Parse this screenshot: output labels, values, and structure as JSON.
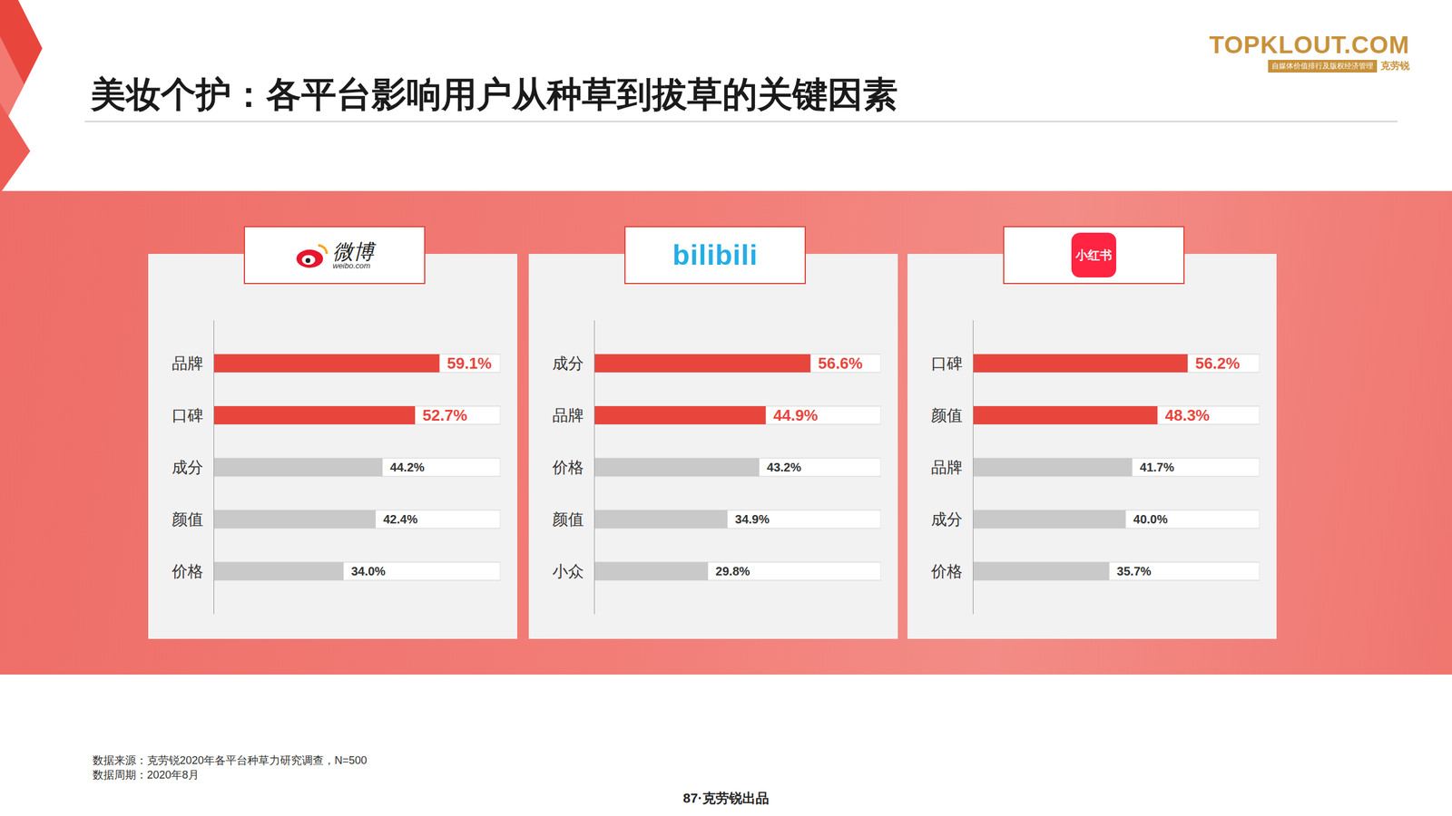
{
  "title": "美妆个护：各平台影响用户从种草到拔草的关键因素",
  "logo": {
    "name": "TOPKLOUT.COM",
    "tagline": "自媒体价值排行及版权经济管理",
    "brand": "克劳锐"
  },
  "source": "数据来源：克劳锐2020年各平台种草力研究调查，N=500",
  "period": "数据周期：2020年8月",
  "page": "87·克劳锐出品",
  "chart_data": [
    {
      "type": "bar",
      "title": "微博",
      "subtitle": "weibo.com",
      "orientation": "horizontal",
      "categories": [
        "品牌",
        "口碑",
        "成分",
        "颜值",
        "价格"
      ],
      "values": [
        59.1,
        52.7,
        44.2,
        42.4,
        34.0
      ],
      "value_labels": [
        "59.1%",
        "52.7%",
        "44.2%",
        "42.4%",
        "34.0%"
      ],
      "colors": [
        "#e8463d",
        "#e8463d",
        "#c9c9c9",
        "#c9c9c9",
        "#c9c9c9"
      ],
      "xlim": [
        0,
        75
      ],
      "tick_labels": "y",
      "data_labels": true,
      "grid": false
    },
    {
      "type": "bar",
      "title": "bilibili",
      "orientation": "horizontal",
      "categories": [
        "成分",
        "品牌",
        "价格",
        "颜值",
        "小众"
      ],
      "values": [
        56.6,
        44.9,
        43.2,
        34.9,
        29.8
      ],
      "value_labels": [
        "56.6%",
        "44.9%",
        "43.2%",
        "34.9%",
        "29.8%"
      ],
      "colors": [
        "#e8463d",
        "#e8463d",
        "#c9c9c9",
        "#c9c9c9",
        "#c9c9c9"
      ],
      "xlim": [
        0,
        75
      ],
      "tick_labels": "y",
      "data_labels": true,
      "grid": false
    },
    {
      "type": "bar",
      "title": "小红书",
      "orientation": "horizontal",
      "categories": [
        "口碑",
        "颜值",
        "品牌",
        "成分",
        "价格"
      ],
      "values": [
        56.2,
        48.3,
        41.7,
        40.0,
        35.7
      ],
      "value_labels": [
        "56.2%",
        "48.3%",
        "41.7%",
        "40.0%",
        "35.7%"
      ],
      "colors": [
        "#e8463d",
        "#e8463d",
        "#c9c9c9",
        "#c9c9c9",
        "#c9c9c9"
      ],
      "xlim": [
        0,
        75
      ],
      "tick_labels": "y",
      "data_labels": true,
      "grid": false
    }
  ]
}
